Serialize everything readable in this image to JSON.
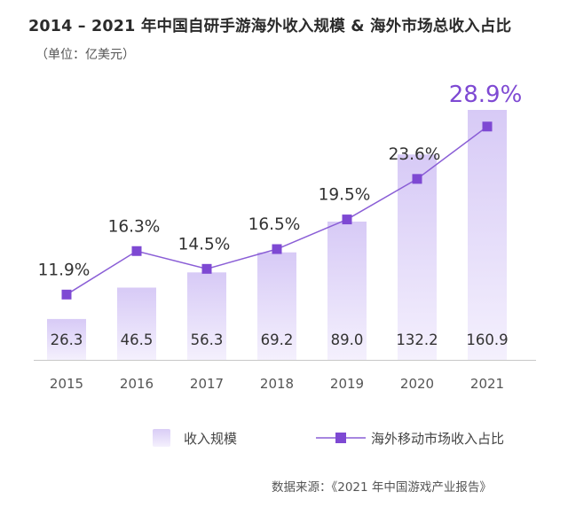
{
  "header": {
    "title": "2014 – 2021 年中国自研手游海外收入规模 & 海外市场总收入占比",
    "unit": "（单位：亿美元）"
  },
  "legend": {
    "bar_label": "收入规模",
    "line_label": "海外移动市场收入占比"
  },
  "footer": {
    "source": "数据来源：《2021 年中国游戏产业报告》"
  },
  "colors": {
    "bar_top": "#d7caf6",
    "bar_bottom": "#f4f0fd",
    "line": "#8a5ed6",
    "marker": "#7e49d3",
    "highlight_label": "#7e49d3",
    "axis": "#c8c8c8"
  },
  "chart_data": {
    "type": "bar",
    "categories": [
      "2015",
      "2016",
      "2017",
      "2018",
      "2019",
      "2020",
      "2021"
    ],
    "series": [
      {
        "name": "收入规模",
        "type": "bar",
        "values": [
          26.3,
          46.5,
          56.3,
          69.2,
          89.0,
          132.2,
          160.9
        ],
        "value_labels": [
          "26.3",
          "46.5",
          "56.3",
          "69.2",
          "89.0",
          "132.2",
          "160.9"
        ]
      },
      {
        "name": "海外移动市场收入占比",
        "type": "line",
        "values": [
          11.9,
          16.3,
          14.5,
          16.5,
          19.5,
          23.6,
          28.9
        ],
        "value_labels": [
          "11.9%",
          "16.3%",
          "14.5%",
          "16.5%",
          "19.5%",
          "23.6%",
          "28.9%"
        ]
      }
    ],
    "title": "2014 – 2021 年中国自研手游海外收入规模 & 海外市场总收入占比",
    "ylabel": "",
    "ylim_bar": [
      0,
      170
    ],
    "ylim_line": [
      -2,
      32
    ],
    "grid": false,
    "legend_position": "bottom",
    "highlight_last_line_label": true
  }
}
